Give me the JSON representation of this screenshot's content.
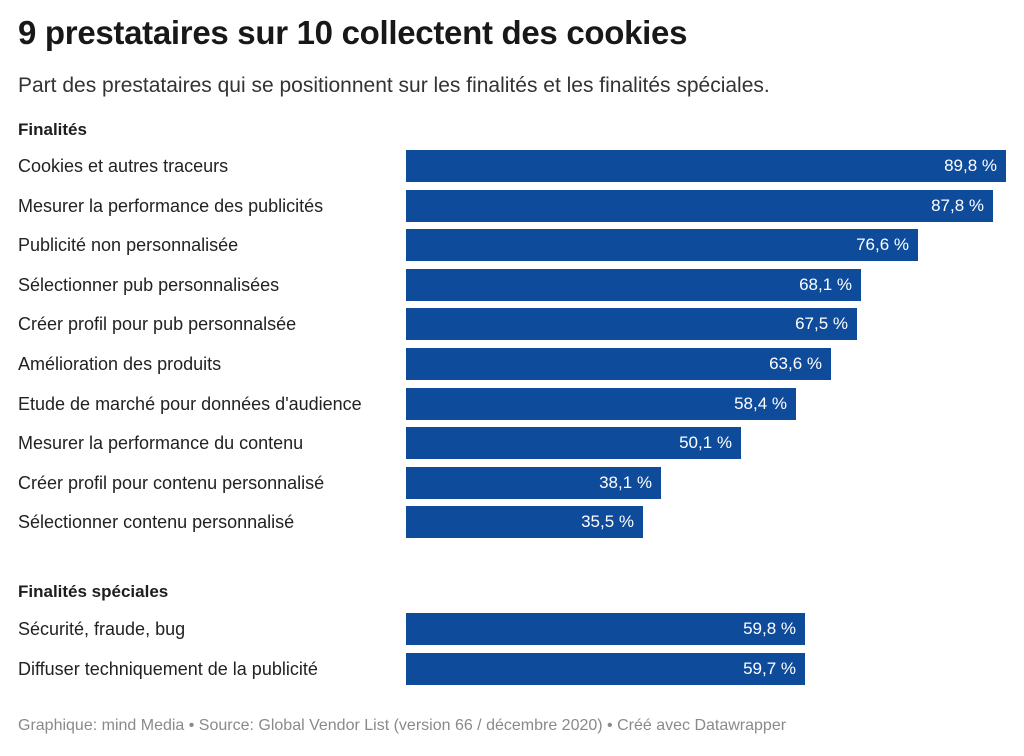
{
  "chart_data": {
    "type": "bar",
    "orientation": "horizontal",
    "title": "9 prestataires sur 10 collectent des cookies",
    "subtitle": "Part des prestataires qui se positionnent sur les finalités et les finalités spéciales.",
    "unit": "%",
    "xlim": [
      0,
      100
    ],
    "color": "#0e4b9a",
    "groups": [
      {
        "label": "Finalités",
        "categories": [
          "Cookies et autres traceurs",
          "Mesurer la performance des publicités",
          "Publicité non personnalisée",
          "Sélectionner pub personnalisées",
          "Créer profil pour pub personnalsée",
          "Amélioration des produits",
          "Etude de marché pour données d'audience",
          "Mesurer la performance du contenu",
          "Créer profil pour contenu personnalisé",
          "Sélectionner contenu personnalisé"
        ],
        "values": [
          89.8,
          87.8,
          76.6,
          68.1,
          67.5,
          63.6,
          58.4,
          50.1,
          38.1,
          35.5
        ],
        "value_labels": [
          "89,8 %",
          "87,8 %",
          "76,6 %",
          "68,1 %",
          "67,5 %",
          "63,6 %",
          "58,4 %",
          "50,1 %",
          "38,1 %",
          "35,5 %"
        ]
      },
      {
        "label": "Finalités spéciales",
        "categories": [
          "Sécurité, fraude, bug",
          "Diffuser techniquement de la publicité"
        ],
        "values": [
          59.8,
          59.7
        ],
        "value_labels": [
          "59,8 %",
          "59,7 %"
        ]
      }
    ],
    "footer": "Graphique: mind Media • Source: Global Vendor List (version 66 / décembre 2020) • Créé avec Datawrapper"
  }
}
